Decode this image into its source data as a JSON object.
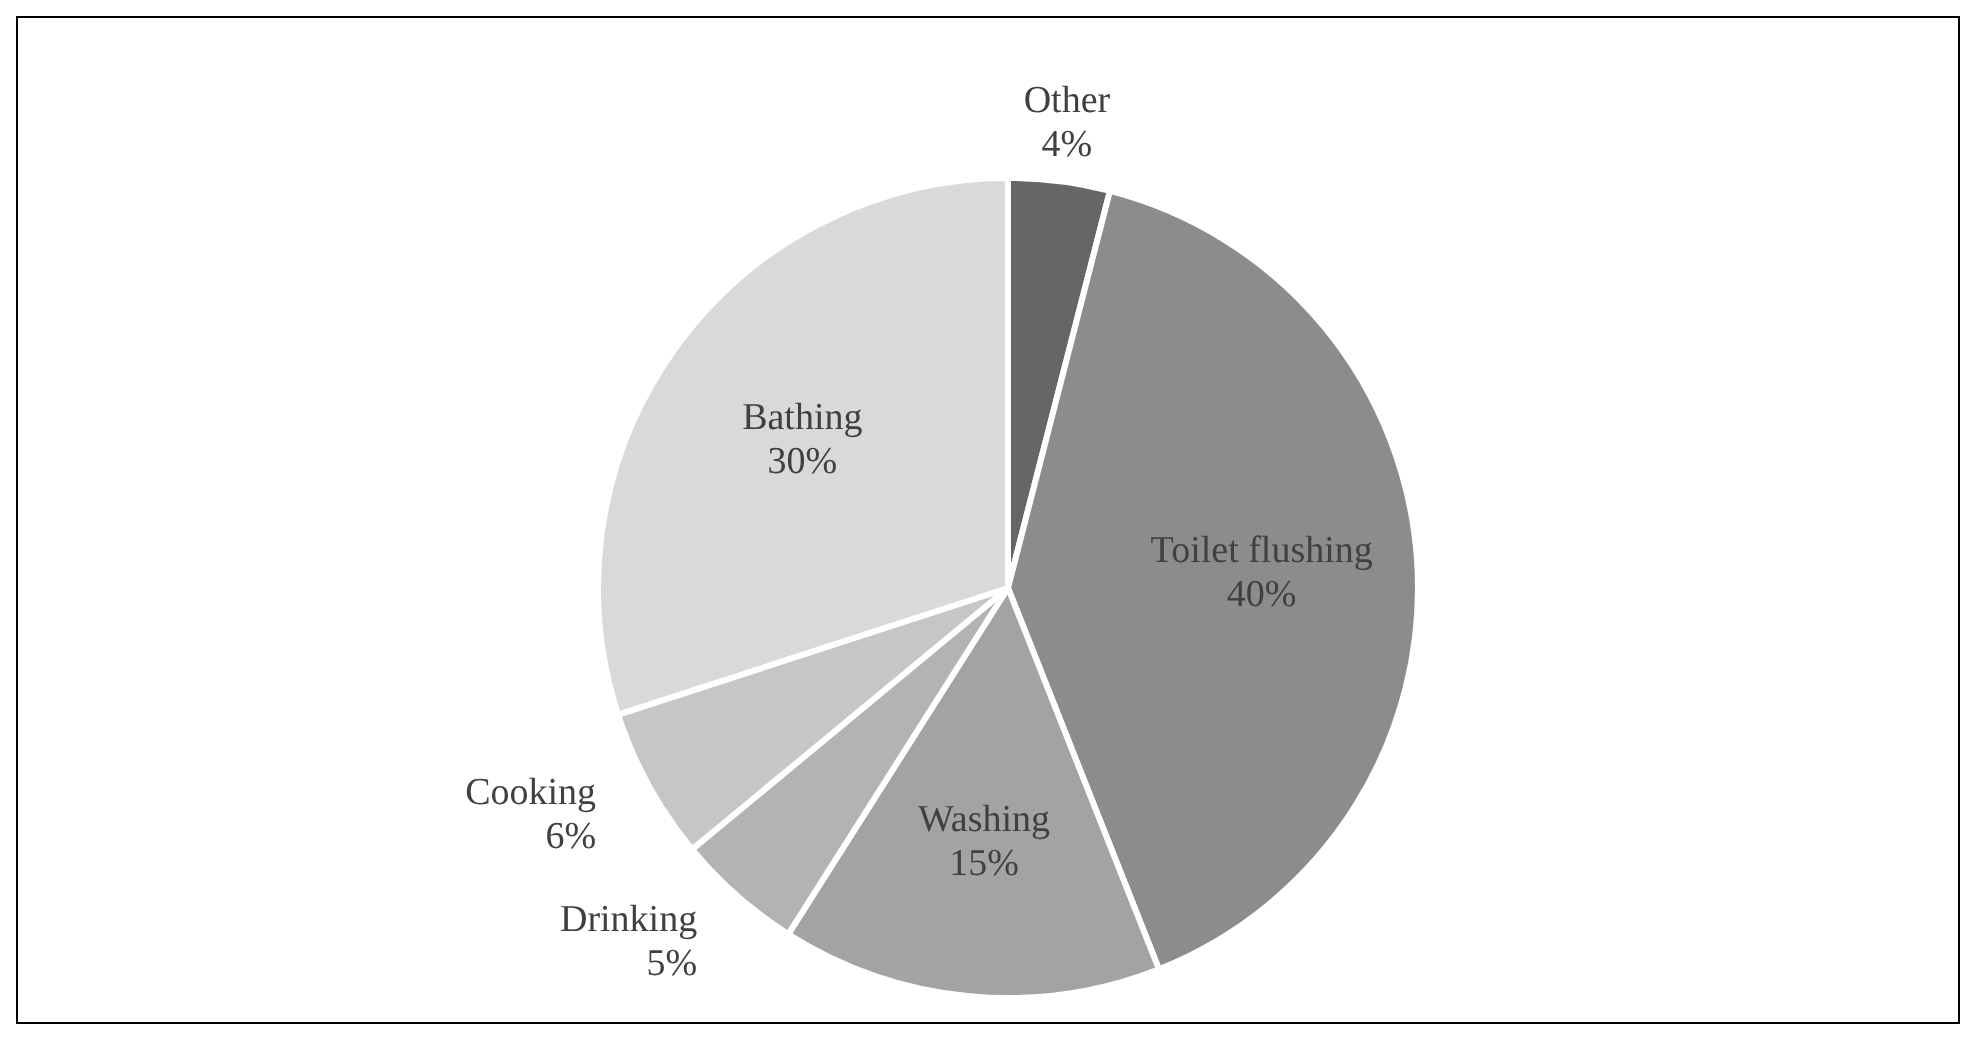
{
  "chart_data": {
    "type": "pie",
    "categories": [
      "Other",
      "Toilet flushing",
      "Washing",
      "Drinking",
      "Cooking",
      "Bathing"
    ],
    "values": [
      4,
      40,
      15,
      5,
      6,
      30
    ],
    "value_labels": [
      "4%",
      "40%",
      "15%",
      "5%",
      "6%",
      "30%"
    ],
    "colors": [
      "#666666",
      "#8c8c8c",
      "#a3a3a3",
      "#b3b3b3",
      "#c6c6c6",
      "#d9d9d9"
    ],
    "legend": false
  }
}
